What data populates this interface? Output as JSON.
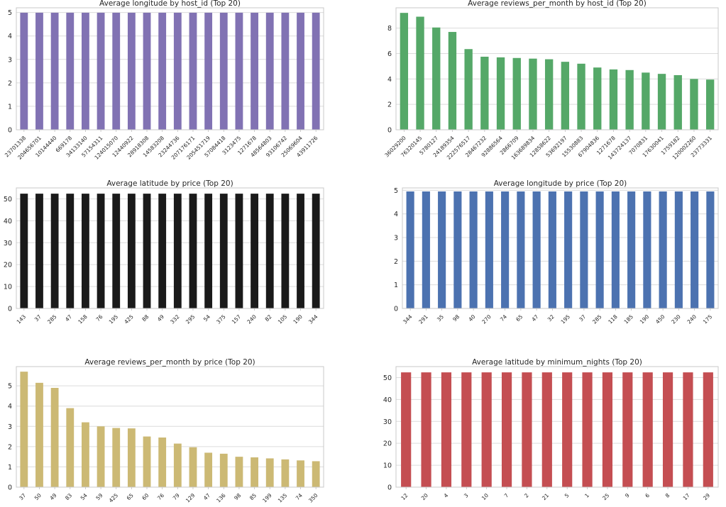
{
  "chart_data": [
    {
      "type": "bar",
      "title": "Average longitude by host_id (Top 20)",
      "categories": [
        "23701338",
        "204656701",
        "10144440",
        "669178",
        "34133140",
        "57154311",
        "124015070",
        "12440922",
        "28918308",
        "14583208",
        "23244736",
        "207176171",
        "205451719",
        "57084418",
        "3123475",
        "1271678",
        "48564803",
        "93106742",
        "25069604",
        "43911726"
      ],
      "values": [
        4.99,
        4.99,
        4.99,
        4.99,
        4.99,
        4.99,
        4.99,
        4.99,
        4.99,
        4.99,
        4.99,
        4.99,
        4.99,
        4.99,
        4.99,
        4.99,
        4.99,
        4.99,
        4.99,
        4.99
      ],
      "ylim": [
        0,
        5.2
      ],
      "yticks": [
        0,
        1,
        2,
        3,
        4,
        5
      ],
      "color": "#8172b3",
      "grid": true
    },
    {
      "type": "bar",
      "title": "Average reviews_per_month by host_id (Top 20)",
      "categories": [
        "36029200",
        "76320145",
        "5780127",
        "24189354",
        "222576517",
        "28467232",
        "92886564",
        "2866709",
        "163689834",
        "12858622",
        "53692197",
        "15530883",
        "67904836",
        "1271678",
        "143724137",
        "7070831",
        "17630041",
        "1759182",
        "120002260",
        "23773331"
      ],
      "values": [
        9.2,
        8.9,
        8.05,
        7.7,
        6.35,
        5.75,
        5.7,
        5.65,
        5.6,
        5.55,
        5.35,
        5.2,
        4.9,
        4.75,
        4.7,
        4.5,
        4.4,
        4.3,
        4.0,
        3.95
      ],
      "ylim": [
        0,
        9.6
      ],
      "yticks": [
        0,
        2,
        4,
        6,
        8
      ],
      "color": "#55a868",
      "grid": true
    },
    {
      "type": "bar",
      "title": "Average latitude by price (Top 20)",
      "categories": [
        "143",
        "37",
        "285",
        "47",
        "158",
        "76",
        "195",
        "425",
        "88",
        "49",
        "332",
        "295",
        "54",
        "375",
        "157",
        "240",
        "82",
        "105",
        "190",
        "344"
      ],
      "values": [
        52.37,
        52.37,
        52.37,
        52.37,
        52.37,
        52.37,
        52.37,
        52.37,
        52.37,
        52.37,
        52.37,
        52.37,
        52.37,
        52.37,
        52.37,
        52.37,
        52.37,
        52.37,
        52.37,
        52.37
      ],
      "ylim": [
        0,
        55
      ],
      "yticks": [
        0,
        10,
        20,
        30,
        40,
        50
      ],
      "color": "#1a1a1a",
      "grid": true
    },
    {
      "type": "bar",
      "title": "Average longitude by price (Top 20)",
      "categories": [
        "344",
        "291",
        "35",
        "98",
        "40",
        "270",
        "74",
        "65",
        "47",
        "32",
        "195",
        "37",
        "285",
        "118",
        "185",
        "190",
        "450",
        "230",
        "240",
        "175"
      ],
      "values": [
        4.95,
        4.95,
        4.95,
        4.95,
        4.95,
        4.95,
        4.95,
        4.95,
        4.95,
        4.95,
        4.95,
        4.95,
        4.95,
        4.95,
        4.95,
        4.95,
        4.95,
        4.95,
        4.95,
        4.95
      ],
      "ylim": [
        0,
        5.1
      ],
      "yticks": [
        0,
        1,
        2,
        3,
        4,
        5
      ],
      "color": "#4c72b0",
      "grid": true
    },
    {
      "type": "bar",
      "title": "Average reviews_per_month by price (Top 20)",
      "categories": [
        "37",
        "50",
        "49",
        "83",
        "54",
        "59",
        "425",
        "65",
        "60",
        "76",
        "79",
        "129",
        "47",
        "136",
        "98",
        "85",
        "199",
        "135",
        "74",
        "350"
      ],
      "values": [
        5.7,
        5.15,
        4.9,
        3.9,
        3.2,
        3.0,
        2.92,
        2.9,
        2.5,
        2.45,
        2.15,
        1.97,
        1.7,
        1.65,
        1.5,
        1.47,
        1.42,
        1.37,
        1.32,
        1.28
      ],
      "ylim": [
        0,
        5.95
      ],
      "yticks": [
        0,
        1,
        2,
        3,
        4,
        5
      ],
      "color": "#ccb974",
      "grid": true
    },
    {
      "type": "bar",
      "title": "Average latitude by minimum_nights (Top 20)",
      "categories": [
        "12",
        "20",
        "4",
        "3",
        "10",
        "7",
        "2",
        "21",
        "5",
        "1",
        "25",
        "9",
        "6",
        "8",
        "17",
        "29"
      ],
      "values": [
        52.37,
        52.37,
        52.37,
        52.37,
        52.37,
        52.37,
        52.37,
        52.37,
        52.37,
        52.37,
        52.37,
        52.37,
        52.37,
        52.37,
        52.37,
        52.37
      ],
      "ylim": [
        0,
        55
      ],
      "yticks": [
        0,
        10,
        20,
        30,
        40,
        50
      ],
      "color": "#c44e52",
      "grid": true
    }
  ]
}
